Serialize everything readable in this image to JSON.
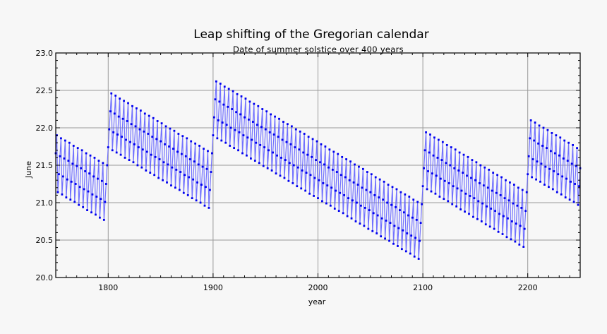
{
  "chart_data": {
    "type": "line",
    "title": "Leap shifting of the Gregorian calendar",
    "subtitle": "Date of summer solstice over 400 years",
    "xlabel": "year",
    "ylabel": "June",
    "xlim": [
      1750,
      2250
    ],
    "ylim": [
      20.0,
      23.0
    ],
    "x_first": 1750,
    "x_step": 1,
    "x_ticks": [
      "1800",
      "1900",
      "2000",
      "2100",
      "2200"
    ],
    "y_ticks": [
      "20.0",
      "20.5",
      "21.0",
      "21.5",
      "22.0",
      "22.5",
      "23.0"
    ],
    "grid": true,
    "colors": {
      "line": "#5a5aff",
      "marker": "#0000ee",
      "grid": "#9a9a9a",
      "background": "#f7f7f7"
    },
    "values": [
      21.66,
      21.9,
      21.14,
      21.38,
      21.62,
      21.86,
      21.11,
      21.35,
      21.59,
      21.83,
      21.07,
      21.31,
      21.56,
      21.8,
      21.04,
      21.28,
      21.52,
      21.76,
      21.01,
      21.25,
      21.49,
      21.73,
      20.97,
      21.21,
      21.46,
      21.7,
      20.94,
      21.18,
      21.42,
      21.66,
      20.9,
      21.15,
      21.39,
      21.63,
      20.87,
      21.11,
      21.35,
      21.6,
      20.84,
      21.08,
      21.32,
      21.56,
      20.8,
      21.05,
      21.29,
      21.53,
      20.77,
      21.01,
      21.25,
      21.5,
      21.74,
      21.98,
      22.22,
      22.46,
      21.7,
      21.94,
      22.19,
      22.43,
      21.67,
      21.91,
      22.15,
      22.39,
      21.64,
      21.88,
      22.12,
      22.36,
      21.6,
      21.84,
      22.09,
      22.33,
      21.57,
      21.81,
      22.05,
      22.29,
      21.54,
      21.78,
      22.02,
      22.26,
      21.5,
      21.74,
      21.98,
      22.23,
      21.47,
      21.71,
      21.95,
      22.19,
      21.43,
      21.68,
      21.92,
      22.16,
      21.4,
      21.64,
      21.88,
      22.13,
      21.37,
      21.61,
      21.85,
      22.09,
      21.33,
      21.58,
      21.82,
      22.06,
      21.3,
      21.54,
      21.78,
      22.02,
      21.27,
      21.51,
      21.75,
      21.99,
      21.23,
      21.47,
      21.72,
      21.96,
      21.2,
      21.44,
      21.68,
      21.92,
      21.17,
      21.41,
      21.65,
      21.89,
      21.13,
      21.37,
      21.62,
      21.86,
      21.1,
      21.34,
      21.58,
      21.82,
      21.06,
      21.31,
      21.55,
      21.79,
      21.03,
      21.27,
      21.51,
      21.76,
      21.0,
      21.24,
      21.48,
      21.72,
      20.96,
      21.21,
      21.45,
      21.69,
      20.93,
      21.17,
      21.41,
      21.66,
      21.9,
      22.14,
      22.38,
      22.62,
      21.86,
      22.1,
      22.35,
      22.59,
      21.83,
      22.07,
      22.31,
      22.55,
      21.8,
      22.04,
      22.28,
      22.52,
      21.76,
      22.0,
      22.25,
      22.49,
      21.73,
      21.97,
      22.21,
      22.45,
      21.7,
      21.94,
      22.18,
      22.42,
      21.66,
      21.9,
      22.14,
      22.39,
      21.63,
      21.87,
      22.11,
      22.35,
      21.59,
      21.84,
      22.08,
      22.32,
      21.56,
      21.8,
      22.04,
      22.29,
      21.53,
      21.77,
      22.01,
      22.25,
      21.49,
      21.74,
      21.98,
      22.22,
      21.46,
      21.7,
      21.94,
      22.18,
      21.43,
      21.67,
      21.91,
      22.15,
      21.39,
      21.63,
      21.88,
      22.12,
      21.36,
      21.6,
      21.84,
      22.08,
      21.33,
      21.57,
      21.81,
      22.05,
      21.29,
      21.53,
      21.78,
      22.02,
      21.26,
      21.5,
      21.74,
      21.98,
      21.22,
      21.47,
      21.71,
      21.95,
      21.19,
      21.43,
      21.67,
      21.92,
      21.16,
      21.4,
      21.64,
      21.88,
      21.12,
      21.37,
      21.61,
      21.85,
      21.09,
      21.33,
      21.57,
      21.82,
      21.06,
      21.3,
      21.54,
      21.78,
      21.02,
      21.26,
      21.51,
      21.75,
      20.99,
      21.23,
      21.47,
      21.71,
      20.96,
      21.2,
      21.44,
      21.68,
      20.92,
      21.16,
      21.41,
      21.65,
      20.89,
      21.13,
      21.37,
      21.61,
      20.86,
      21.1,
      21.34,
      21.58,
      20.82,
      21.06,
      21.3,
      21.55,
      20.79,
      21.03,
      21.27,
      21.51,
      20.75,
      21.0,
      21.24,
      21.48,
      20.72,
      20.96,
      21.2,
      21.45,
      20.69,
      20.93,
      21.17,
      21.41,
      20.65,
      20.9,
      21.14,
      21.38,
      20.62,
      20.86,
      21.1,
      21.34,
      20.59,
      20.83,
      21.07,
      21.31,
      20.55,
      20.79,
      21.04,
      21.28,
      20.52,
      20.76,
      21.0,
      21.24,
      20.49,
      20.73,
      20.97,
      21.21,
      20.45,
      20.69,
      20.94,
      21.18,
      20.42,
      20.66,
      20.9,
      21.14,
      20.38,
      20.63,
      20.87,
      21.11,
      20.35,
      20.59,
      20.83,
      21.08,
      20.32,
      20.56,
      20.8,
      21.04,
      20.28,
      20.53,
      20.77,
      21.01,
      20.25,
      20.49,
      20.73,
      20.98,
      21.22,
      21.46,
      21.7,
      21.94,
      21.18,
      21.42,
      21.67,
      21.91,
      21.15,
      21.39,
      21.63,
      21.87,
      21.12,
      21.36,
      21.6,
      21.84,
      21.08,
      21.32,
      21.57,
      21.81,
      21.05,
      21.29,
      21.53,
      21.77,
      21.02,
      21.26,
      21.5,
      21.74,
      20.98,
      21.22,
      21.46,
      21.71,
      20.95,
      21.19,
      21.43,
      21.67,
      20.91,
      21.16,
      21.4,
      21.64,
      20.88,
      21.12,
      21.36,
      21.61,
      20.85,
      21.09,
      21.33,
      21.57,
      20.81,
      21.06,
      21.3,
      21.54,
      20.78,
      21.02,
      21.26,
      21.5,
      20.75,
      20.99,
      21.23,
      21.47,
      20.71,
      20.95,
      21.2,
      21.44,
      20.68,
      20.92,
      21.16,
      21.4,
      20.65,
      20.89,
      21.13,
      21.37,
      20.61,
      20.85,
      21.1,
      21.34,
      20.58,
      20.82,
      21.06,
      21.3,
      20.54,
      20.79,
      21.03,
      21.27,
      20.51,
      20.75,
      20.99,
      21.24,
      20.48,
      20.72,
      20.96,
      21.2,
      20.44,
      20.69,
      20.93,
      21.17,
      20.41,
      20.65,
      20.89,
      21.14,
      21.38,
      21.62,
      21.86,
      22.1,
      21.34,
      21.58,
      21.83,
      22.07,
      21.31,
      21.55,
      21.79,
      22.03,
      21.28,
      21.52,
      21.76,
      22.0,
      21.24,
      21.48,
      21.73,
      21.97,
      21.21,
      21.45,
      21.69,
      21.93,
      21.18,
      21.42,
      21.66,
      21.9,
      21.14,
      21.38,
      21.63,
      21.87,
      21.11,
      21.35,
      21.59,
      21.83,
      21.07,
      21.32,
      21.56,
      21.8,
      21.04,
      21.28,
      21.52,
      21.77,
      21.01,
      21.25,
      21.49,
      21.73,
      20.97,
      21.22,
      21.46
    ]
  }
}
